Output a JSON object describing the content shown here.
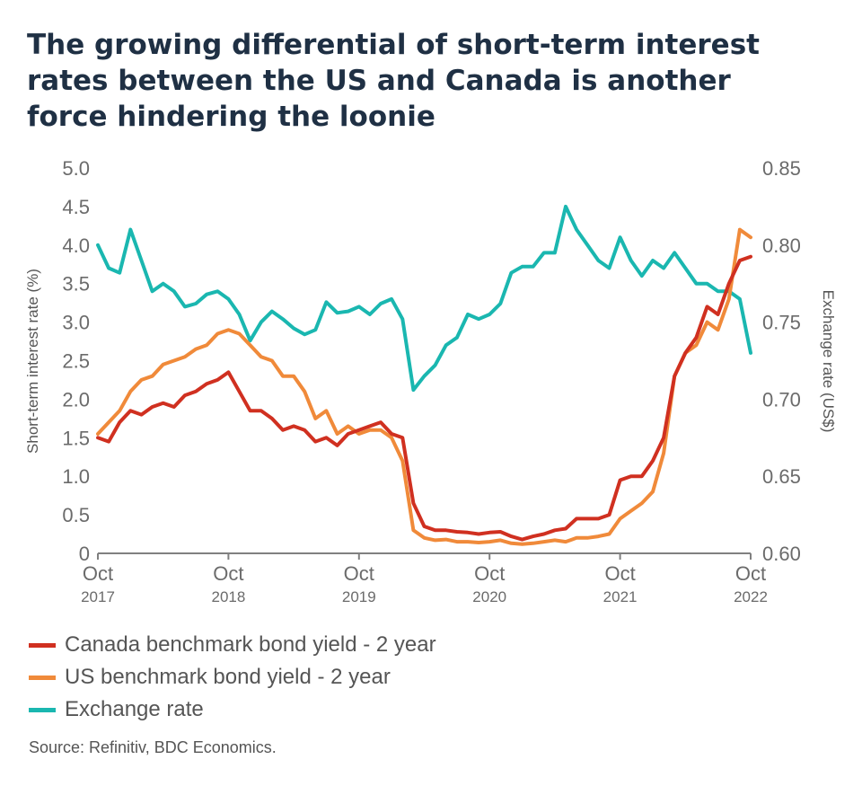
{
  "title": "The growing differential of short-term interest rates between the US and Canada is another force hindering the loonie",
  "source": "Source: Refinitiv, BDC Economics.",
  "colors": {
    "canada": "#d03020",
    "us": "#f08a3a",
    "fx": "#1ab7b0",
    "axis": "#808080"
  },
  "chart_data": {
    "type": "line",
    "title": "The growing differential of short-term interest rates between the US and Canada is another force hindering the loonie",
    "y_left_label": "Short-term interest rate (%)",
    "y_right_label": "Exchange rate (US$)",
    "y_left_lim": [
      0,
      5
    ],
    "y_right_lim": [
      0.6,
      0.85
    ],
    "y_left_ticks": [
      "5.0",
      "4.5",
      "4.0",
      "3.5",
      "3.0",
      "2.5",
      "2.0",
      "1.5",
      "1.0",
      "0.5",
      "0"
    ],
    "y_right_ticks": [
      "0.85",
      "0.80",
      "0.75",
      "0.70",
      "0.65",
      "0.60"
    ],
    "x_ticks": [
      {
        "month": "Oct",
        "year": "2017"
      },
      {
        "month": "Oct",
        "year": "2018"
      },
      {
        "month": "Oct",
        "year": "2019"
      },
      {
        "month": "Oct",
        "year": "2020"
      },
      {
        "month": "Oct",
        "year": "2021"
      },
      {
        "month": "Oct",
        "year": "2022"
      }
    ],
    "grid": false,
    "legend_position": "bottom-left",
    "series": [
      {
        "name": "Canada benchmark bond yield - 2 year",
        "axis": "left",
        "x": [
          "2017-10",
          "2017-11",
          "2017-12",
          "2018-01",
          "2018-02",
          "2018-03",
          "2018-04",
          "2018-05",
          "2018-06",
          "2018-07",
          "2018-08",
          "2018-09",
          "2018-10",
          "2018-11",
          "2018-12",
          "2019-01",
          "2019-02",
          "2019-03",
          "2019-04",
          "2019-05",
          "2019-06",
          "2019-07",
          "2019-08",
          "2019-09",
          "2019-10",
          "2019-11",
          "2019-12",
          "2020-01",
          "2020-02",
          "2020-03",
          "2020-04",
          "2020-05",
          "2020-06",
          "2020-07",
          "2020-08",
          "2020-09",
          "2020-10",
          "2020-11",
          "2020-12",
          "2021-01",
          "2021-02",
          "2021-03",
          "2021-04",
          "2021-05",
          "2021-06",
          "2021-07",
          "2021-08",
          "2021-09",
          "2021-10",
          "2021-11",
          "2021-12",
          "2022-01",
          "2022-02",
          "2022-03",
          "2022-04",
          "2022-05",
          "2022-06",
          "2022-07",
          "2022-08",
          "2022-09",
          "2022-10"
        ],
        "values": [
          1.5,
          1.45,
          1.7,
          1.85,
          1.8,
          1.9,
          1.95,
          1.9,
          2.05,
          2.1,
          2.2,
          2.25,
          2.35,
          2.1,
          1.85,
          1.85,
          1.75,
          1.6,
          1.65,
          1.6,
          1.45,
          1.5,
          1.4,
          1.55,
          1.6,
          1.65,
          1.7,
          1.55,
          1.5,
          0.65,
          0.35,
          0.3,
          0.3,
          0.28,
          0.27,
          0.25,
          0.27,
          0.28,
          0.22,
          0.18,
          0.22,
          0.25,
          0.3,
          0.32,
          0.45,
          0.45,
          0.45,
          0.5,
          0.95,
          1.0,
          1.0,
          1.2,
          1.5,
          2.3,
          2.6,
          2.8,
          3.2,
          3.1,
          3.5,
          3.8,
          3.85
        ]
      },
      {
        "name": "US benchmark bond yield - 2 year",
        "axis": "left",
        "x": [
          "2017-10",
          "2017-11",
          "2017-12",
          "2018-01",
          "2018-02",
          "2018-03",
          "2018-04",
          "2018-05",
          "2018-06",
          "2018-07",
          "2018-08",
          "2018-09",
          "2018-10",
          "2018-11",
          "2018-12",
          "2019-01",
          "2019-02",
          "2019-03",
          "2019-04",
          "2019-05",
          "2019-06",
          "2019-07",
          "2019-08",
          "2019-09",
          "2019-10",
          "2019-11",
          "2019-12",
          "2020-01",
          "2020-02",
          "2020-03",
          "2020-04",
          "2020-05",
          "2020-06",
          "2020-07",
          "2020-08",
          "2020-09",
          "2020-10",
          "2020-11",
          "2020-12",
          "2021-01",
          "2021-02",
          "2021-03",
          "2021-04",
          "2021-05",
          "2021-06",
          "2021-07",
          "2021-08",
          "2021-09",
          "2021-10",
          "2021-11",
          "2021-12",
          "2022-01",
          "2022-02",
          "2022-03",
          "2022-04",
          "2022-05",
          "2022-06",
          "2022-07",
          "2022-08",
          "2022-09",
          "2022-10"
        ],
        "values": [
          1.55,
          1.7,
          1.85,
          2.1,
          2.25,
          2.3,
          2.45,
          2.5,
          2.55,
          2.65,
          2.7,
          2.85,
          2.9,
          2.85,
          2.7,
          2.55,
          2.5,
          2.3,
          2.3,
          2.1,
          1.75,
          1.85,
          1.55,
          1.65,
          1.55,
          1.6,
          1.6,
          1.5,
          1.2,
          0.3,
          0.2,
          0.17,
          0.18,
          0.15,
          0.15,
          0.14,
          0.15,
          0.17,
          0.13,
          0.12,
          0.13,
          0.15,
          0.17,
          0.15,
          0.2,
          0.2,
          0.22,
          0.25,
          0.45,
          0.55,
          0.65,
          0.8,
          1.3,
          2.3,
          2.6,
          2.7,
          3.0,
          2.9,
          3.3,
          4.2,
          4.1
        ]
      },
      {
        "name": "Exchange rate",
        "axis": "right",
        "x": [
          "2017-10",
          "2017-11",
          "2017-12",
          "2018-01",
          "2018-02",
          "2018-03",
          "2018-04",
          "2018-05",
          "2018-06",
          "2018-07",
          "2018-08",
          "2018-09",
          "2018-10",
          "2018-11",
          "2018-12",
          "2019-01",
          "2019-02",
          "2019-03",
          "2019-04",
          "2019-05",
          "2019-06",
          "2019-07",
          "2019-08",
          "2019-09",
          "2019-10",
          "2019-11",
          "2019-12",
          "2020-01",
          "2020-02",
          "2020-03",
          "2020-04",
          "2020-05",
          "2020-06",
          "2020-07",
          "2020-08",
          "2020-09",
          "2020-10",
          "2020-11",
          "2020-12",
          "2021-01",
          "2021-02",
          "2021-03",
          "2021-04",
          "2021-05",
          "2021-06",
          "2021-07",
          "2021-08",
          "2021-09",
          "2021-10",
          "2021-11",
          "2021-12",
          "2022-01",
          "2022-02",
          "2022-03",
          "2022-04",
          "2022-05",
          "2022-06",
          "2022-07",
          "2022-08",
          "2022-09",
          "2022-10"
        ],
        "values": [
          0.8,
          0.785,
          0.782,
          0.81,
          0.79,
          0.77,
          0.775,
          0.77,
          0.76,
          0.762,
          0.768,
          0.77,
          0.765,
          0.755,
          0.738,
          0.75,
          0.757,
          0.752,
          0.746,
          0.742,
          0.745,
          0.763,
          0.756,
          0.757,
          0.76,
          0.755,
          0.762,
          0.765,
          0.752,
          0.706,
          0.715,
          0.722,
          0.735,
          0.74,
          0.755,
          0.752,
          0.755,
          0.762,
          0.782,
          0.786,
          0.786,
          0.795,
          0.795,
          0.825,
          0.81,
          0.8,
          0.79,
          0.785,
          0.805,
          0.79,
          0.78,
          0.79,
          0.785,
          0.795,
          0.785,
          0.775,
          0.775,
          0.77,
          0.77,
          0.765,
          0.73
        ]
      }
    ]
  }
}
